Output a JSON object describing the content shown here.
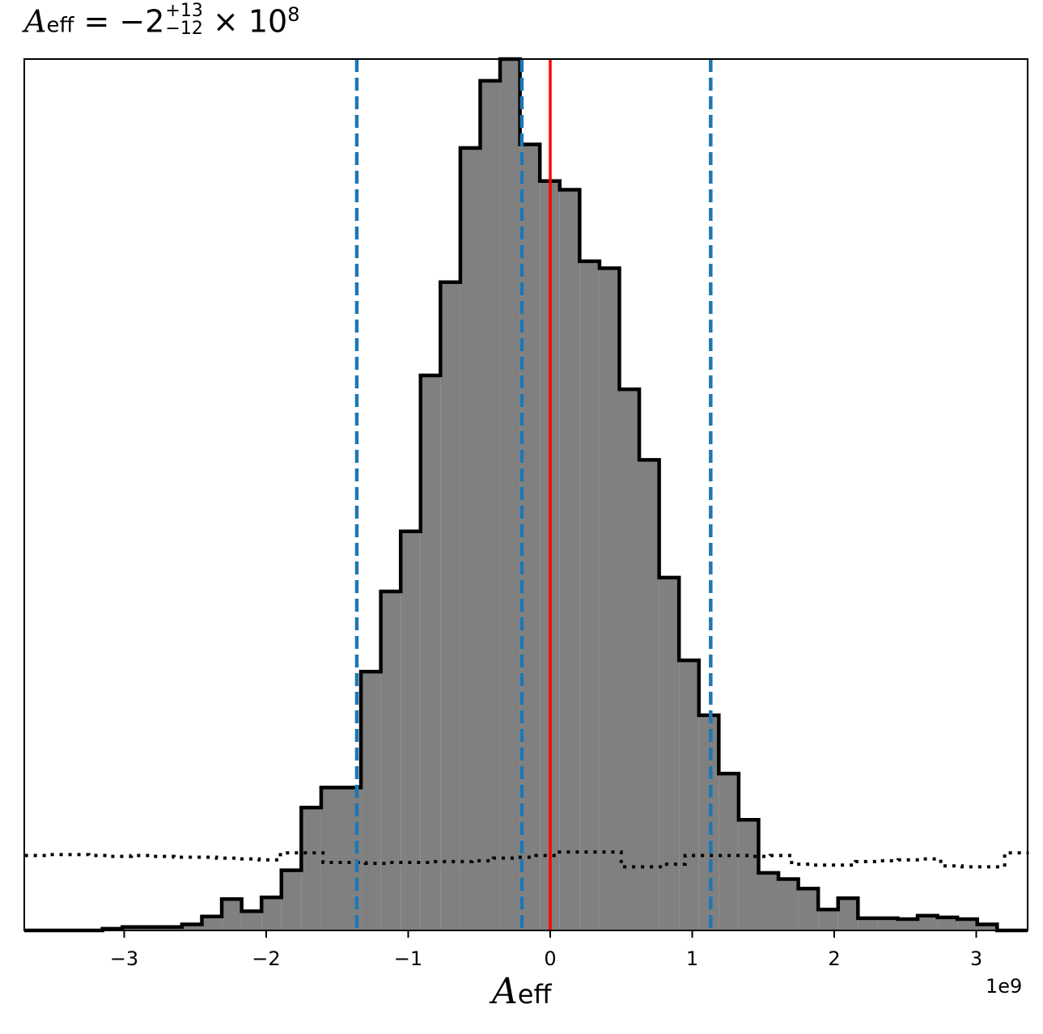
{
  "title": {
    "symbol": "A",
    "subscript": "eff",
    "equals": "= −2",
    "upper_err": "+13",
    "lower_err": "−12",
    "times": "× 10",
    "exponent": "8"
  },
  "chart_data": {
    "type": "histogram",
    "xlabel_symbol": "A",
    "xlabel_subscript": "eff",
    "x_offset_label": "1e9",
    "xlim": [
      -3.7,
      3.37
    ],
    "ylim": [
      0,
      1.0
    ],
    "xticks": [
      -3,
      -2,
      -1,
      0,
      1,
      2,
      3
    ],
    "xtick_labels": [
      "−3",
      "−2",
      "−1",
      "0",
      "1",
      "2",
      "3"
    ],
    "histogram": {
      "fill_color": "#808080",
      "edge_color": "#000000",
      "bin_edges": [
        -3.153,
        -3.013,
        -2.873,
        -2.733,
        -2.593,
        -2.453,
        -2.313,
        -2.173,
        -2.033,
        -1.893,
        -1.753,
        -1.613,
        -1.473,
        -1.333,
        -1.193,
        -1.053,
        -0.913,
        -0.773,
        -0.633,
        -0.493,
        -0.353,
        -0.213,
        -0.073,
        0.067,
        0.207,
        0.347,
        0.487,
        0.627,
        0.767,
        0.907,
        1.047,
        1.187,
        1.327,
        1.467,
        1.607,
        1.747,
        1.887,
        2.027,
        2.167,
        2.307,
        2.447,
        2.587,
        2.727,
        2.867,
        3.007,
        3.147
      ],
      "counts": [
        0.002,
        0.004,
        0.004,
        0.004,
        0.007,
        0.016,
        0.036,
        0.022,
        0.038,
        0.069,
        0.141,
        0.164,
        0.164,
        0.297,
        0.389,
        0.458,
        0.637,
        0.744,
        0.898,
        0.975,
        1.0,
        0.902,
        0.86,
        0.85,
        0.768,
        0.76,
        0.621,
        0.54,
        0.405,
        0.31,
        0.247,
        0.18,
        0.127,
        0.066,
        0.059,
        0.048,
        0.024,
        0.037,
        0.014,
        0.014,
        0.013,
        0.017,
        0.015,
        0.013,
        0.007
      ]
    },
    "prior": {
      "style": "dotted",
      "color": "#000000",
      "x": [
        -3.7,
        -3.55,
        -3.4,
        -3.25,
        -3.1,
        -2.95,
        -2.8,
        -2.65,
        -2.5,
        -2.35,
        -2.2,
        -2.05,
        -1.9,
        -1.75,
        -1.6,
        -1.45,
        -1.3,
        -1.15,
        -1.0,
        -0.85,
        -0.7,
        -0.55,
        -0.4,
        -0.25,
        -0.1,
        0.05,
        0.2,
        0.35,
        0.5,
        0.65,
        0.8,
        0.95,
        1.1,
        1.25,
        1.4,
        1.55,
        1.7,
        1.85,
        2.0,
        2.15,
        2.3,
        2.45,
        2.6,
        2.75,
        2.9,
        3.05,
        3.2,
        3.37
      ],
      "y": [
        0.086,
        0.087,
        0.087,
        0.086,
        0.085,
        0.086,
        0.085,
        0.084,
        0.084,
        0.083,
        0.082,
        0.081,
        0.089,
        0.089,
        0.078,
        0.078,
        0.077,
        0.078,
        0.078,
        0.079,
        0.079,
        0.08,
        0.083,
        0.084,
        0.086,
        0.09,
        0.09,
        0.09,
        0.073,
        0.073,
        0.076,
        0.086,
        0.086,
        0.086,
        0.085,
        0.086,
        0.076,
        0.075,
        0.075,
        0.079,
        0.08,
        0.081,
        0.082,
        0.074,
        0.073,
        0.073,
        0.089,
        0.089
      ]
    },
    "vlines": [
      {
        "x": -1.362,
        "color": "#1f77b4",
        "style": "dashed"
      },
      {
        "x": -0.2,
        "color": "#1f77b4",
        "style": "dashed"
      },
      {
        "x": 1.13,
        "color": "#1f77b4",
        "style": "dashed"
      },
      {
        "x": 0.0,
        "color": "#ff0000",
        "style": "solid"
      }
    ]
  }
}
